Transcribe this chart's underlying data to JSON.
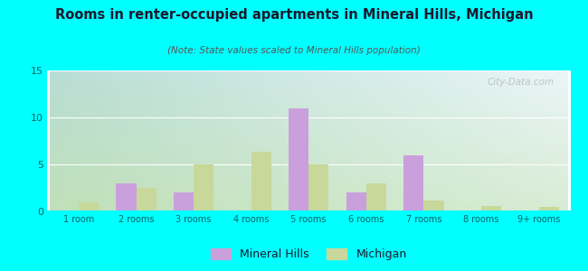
{
  "title": "Rooms in renter-occupied apartments in Mineral Hills, Michigan",
  "subtitle": "(Note: State values scaled to Mineral Hills population)",
  "categories": [
    "1 room",
    "2 rooms",
    "3 rooms",
    "4 rooms",
    "5 rooms",
    "6 rooms",
    "7 rooms",
    "8 rooms",
    "9+ rooms"
  ],
  "mineral_hills": [
    0,
    3,
    2,
    0,
    11,
    2,
    6,
    0,
    0
  ],
  "michigan": [
    1,
    2.5,
    5,
    6.3,
    5,
    3,
    1.2,
    0.6,
    0.5
  ],
  "bar_color_mh": "#c9a0dc",
  "bar_color_mi": "#c8d89a",
  "ylim": [
    0,
    15
  ],
  "yticks": [
    0,
    5,
    10,
    15
  ],
  "bg_color": "#00ffff",
  "grad_top_left": "#c8e8e0",
  "grad_top_right": "#f0f8fc",
  "grad_bottom_left": "#c8e8c0",
  "grad_bottom_right": "#e8f4e8",
  "title_color": "#1a1a2e",
  "subtitle_color": "#555555",
  "axis_color": "#008080",
  "tick_color": "#006666",
  "watermark": "City-Data.com",
  "bar_width": 0.35,
  "legend_mh": "Mineral Hills",
  "legend_mi": "Michigan"
}
